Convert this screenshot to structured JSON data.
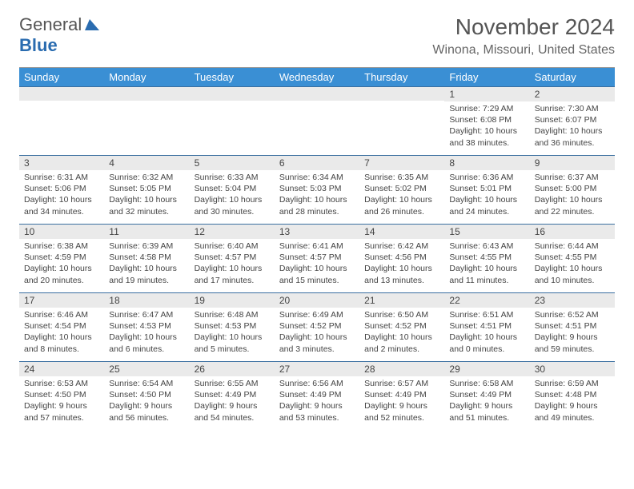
{
  "brand": {
    "part1": "General",
    "part2": "Blue"
  },
  "title": "November 2024",
  "location": "Winona, Missouri, United States",
  "colors": {
    "header_bg": "#3a8fd4",
    "daynum_bg": "#eaeaea",
    "daynum_border": "#3a6fa0",
    "text": "#444444",
    "brand_blue": "#2a6cb0"
  },
  "dayNames": [
    "Sunday",
    "Monday",
    "Tuesday",
    "Wednesday",
    "Thursday",
    "Friday",
    "Saturday"
  ],
  "weeks": [
    [
      {
        "n": "",
        "sr": "",
        "ss": "",
        "dl": ""
      },
      {
        "n": "",
        "sr": "",
        "ss": "",
        "dl": ""
      },
      {
        "n": "",
        "sr": "",
        "ss": "",
        "dl": ""
      },
      {
        "n": "",
        "sr": "",
        "ss": "",
        "dl": ""
      },
      {
        "n": "",
        "sr": "",
        "ss": "",
        "dl": ""
      },
      {
        "n": "1",
        "sr": "Sunrise: 7:29 AM",
        "ss": "Sunset: 6:08 PM",
        "dl": "Daylight: 10 hours and 38 minutes."
      },
      {
        "n": "2",
        "sr": "Sunrise: 7:30 AM",
        "ss": "Sunset: 6:07 PM",
        "dl": "Daylight: 10 hours and 36 minutes."
      }
    ],
    [
      {
        "n": "3",
        "sr": "Sunrise: 6:31 AM",
        "ss": "Sunset: 5:06 PM",
        "dl": "Daylight: 10 hours and 34 minutes."
      },
      {
        "n": "4",
        "sr": "Sunrise: 6:32 AM",
        "ss": "Sunset: 5:05 PM",
        "dl": "Daylight: 10 hours and 32 minutes."
      },
      {
        "n": "5",
        "sr": "Sunrise: 6:33 AM",
        "ss": "Sunset: 5:04 PM",
        "dl": "Daylight: 10 hours and 30 minutes."
      },
      {
        "n": "6",
        "sr": "Sunrise: 6:34 AM",
        "ss": "Sunset: 5:03 PM",
        "dl": "Daylight: 10 hours and 28 minutes."
      },
      {
        "n": "7",
        "sr": "Sunrise: 6:35 AM",
        "ss": "Sunset: 5:02 PM",
        "dl": "Daylight: 10 hours and 26 minutes."
      },
      {
        "n": "8",
        "sr": "Sunrise: 6:36 AM",
        "ss": "Sunset: 5:01 PM",
        "dl": "Daylight: 10 hours and 24 minutes."
      },
      {
        "n": "9",
        "sr": "Sunrise: 6:37 AM",
        "ss": "Sunset: 5:00 PM",
        "dl": "Daylight: 10 hours and 22 minutes."
      }
    ],
    [
      {
        "n": "10",
        "sr": "Sunrise: 6:38 AM",
        "ss": "Sunset: 4:59 PM",
        "dl": "Daylight: 10 hours and 20 minutes."
      },
      {
        "n": "11",
        "sr": "Sunrise: 6:39 AM",
        "ss": "Sunset: 4:58 PM",
        "dl": "Daylight: 10 hours and 19 minutes."
      },
      {
        "n": "12",
        "sr": "Sunrise: 6:40 AM",
        "ss": "Sunset: 4:57 PM",
        "dl": "Daylight: 10 hours and 17 minutes."
      },
      {
        "n": "13",
        "sr": "Sunrise: 6:41 AM",
        "ss": "Sunset: 4:57 PM",
        "dl": "Daylight: 10 hours and 15 minutes."
      },
      {
        "n": "14",
        "sr": "Sunrise: 6:42 AM",
        "ss": "Sunset: 4:56 PM",
        "dl": "Daylight: 10 hours and 13 minutes."
      },
      {
        "n": "15",
        "sr": "Sunrise: 6:43 AM",
        "ss": "Sunset: 4:55 PM",
        "dl": "Daylight: 10 hours and 11 minutes."
      },
      {
        "n": "16",
        "sr": "Sunrise: 6:44 AM",
        "ss": "Sunset: 4:55 PM",
        "dl": "Daylight: 10 hours and 10 minutes."
      }
    ],
    [
      {
        "n": "17",
        "sr": "Sunrise: 6:46 AM",
        "ss": "Sunset: 4:54 PM",
        "dl": "Daylight: 10 hours and 8 minutes."
      },
      {
        "n": "18",
        "sr": "Sunrise: 6:47 AM",
        "ss": "Sunset: 4:53 PM",
        "dl": "Daylight: 10 hours and 6 minutes."
      },
      {
        "n": "19",
        "sr": "Sunrise: 6:48 AM",
        "ss": "Sunset: 4:53 PM",
        "dl": "Daylight: 10 hours and 5 minutes."
      },
      {
        "n": "20",
        "sr": "Sunrise: 6:49 AM",
        "ss": "Sunset: 4:52 PM",
        "dl": "Daylight: 10 hours and 3 minutes."
      },
      {
        "n": "21",
        "sr": "Sunrise: 6:50 AM",
        "ss": "Sunset: 4:52 PM",
        "dl": "Daylight: 10 hours and 2 minutes."
      },
      {
        "n": "22",
        "sr": "Sunrise: 6:51 AM",
        "ss": "Sunset: 4:51 PM",
        "dl": "Daylight: 10 hours and 0 minutes."
      },
      {
        "n": "23",
        "sr": "Sunrise: 6:52 AM",
        "ss": "Sunset: 4:51 PM",
        "dl": "Daylight: 9 hours and 59 minutes."
      }
    ],
    [
      {
        "n": "24",
        "sr": "Sunrise: 6:53 AM",
        "ss": "Sunset: 4:50 PM",
        "dl": "Daylight: 9 hours and 57 minutes."
      },
      {
        "n": "25",
        "sr": "Sunrise: 6:54 AM",
        "ss": "Sunset: 4:50 PM",
        "dl": "Daylight: 9 hours and 56 minutes."
      },
      {
        "n": "26",
        "sr": "Sunrise: 6:55 AM",
        "ss": "Sunset: 4:49 PM",
        "dl": "Daylight: 9 hours and 54 minutes."
      },
      {
        "n": "27",
        "sr": "Sunrise: 6:56 AM",
        "ss": "Sunset: 4:49 PM",
        "dl": "Daylight: 9 hours and 53 minutes."
      },
      {
        "n": "28",
        "sr": "Sunrise: 6:57 AM",
        "ss": "Sunset: 4:49 PM",
        "dl": "Daylight: 9 hours and 52 minutes."
      },
      {
        "n": "29",
        "sr": "Sunrise: 6:58 AM",
        "ss": "Sunset: 4:49 PM",
        "dl": "Daylight: 9 hours and 51 minutes."
      },
      {
        "n": "30",
        "sr": "Sunrise: 6:59 AM",
        "ss": "Sunset: 4:48 PM",
        "dl": "Daylight: 9 hours and 49 minutes."
      }
    ]
  ]
}
